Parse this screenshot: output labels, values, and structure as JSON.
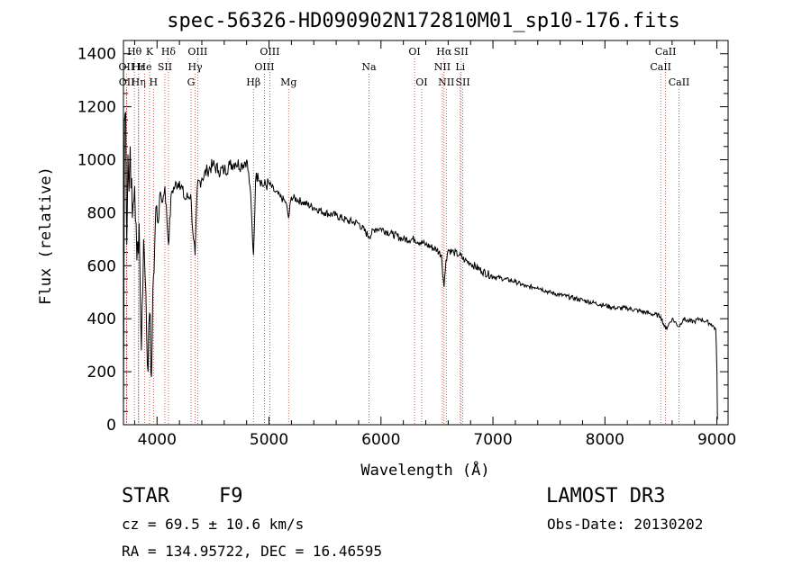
{
  "chart_data": {
    "type": "line",
    "title": "spec-56326-HD090902N172810M01_sp10-176.fits",
    "xlabel": "Wavelength (Å)",
    "ylabel": "Flux (relative)",
    "xlim": [
      3700,
      9100
    ],
    "ylim": [
      0,
      1450
    ],
    "xticks": [
      4000,
      5000,
      6000,
      7000,
      8000,
      9000
    ],
    "yticks": [
      0,
      200,
      400,
      600,
      800,
      1000,
      1200,
      1400
    ],
    "series": [
      {
        "name": "flux",
        "x": [
          3700,
          3710,
          3720,
          3730,
          3740,
          3750,
          3760,
          3780,
          3800,
          3820,
          3840,
          3860,
          3880,
          3900,
          3920,
          3933,
          3950,
          3968,
          3990,
          4010,
          4030,
          4050,
          4070,
          4102,
          4130,
          4160,
          4200,
          4250,
          4300,
          4325,
          4340,
          4360,
          4400,
          4450,
          4500,
          4550,
          4600,
          4650,
          4700,
          4750,
          4800,
          4830,
          4861,
          4880,
          4900,
          4950,
          5000,
          5050,
          5100,
          5150,
          5175,
          5200,
          5300,
          5400,
          5500,
          5600,
          5700,
          5800,
          5893,
          5950,
          6000,
          6100,
          6200,
          6300,
          6400,
          6500,
          6540,
          6563,
          6580,
          6600,
          6650,
          6700,
          6750,
          6800,
          6900,
          7000,
          7100,
          7200,
          7300,
          7400,
          7500,
          7600,
          7700,
          7800,
          7900,
          8000,
          8100,
          8200,
          8300,
          8400,
          8498,
          8542,
          8600,
          8662,
          8700,
          8750,
          8800,
          8850,
          8900,
          8950,
          8990,
          9000,
          9005
        ],
        "y": [
          20,
          1150,
          1180,
          680,
          1020,
          880,
          1050,
          780,
          900,
          620,
          760,
          280,
          700,
          500,
          200,
          420,
          180,
          560,
          820,
          760,
          880,
          840,
          900,
          680,
          880,
          900,
          920,
          850,
          870,
          700,
          640,
          900,
          930,
          960,
          980,
          960,
          960,
          980,
          990,
          980,
          1000,
          900,
          640,
          920,
          950,
          900,
          910,
          880,
          860,
          840,
          780,
          860,
          840,
          820,
          800,
          790,
          770,
          760,
          710,
          740,
          740,
          720,
          700,
          700,
          680,
          660,
          640,
          520,
          620,
          660,
          650,
          640,
          620,
          610,
          580,
          560,
          550,
          540,
          520,
          520,
          500,
          490,
          480,
          470,
          460,
          450,
          440,
          440,
          430,
          420,
          410,
          360,
          400,
          370,
          400,
          390,
          390,
          400,
          390,
          380,
          360,
          200,
          20
        ]
      }
    ],
    "lines": [
      {
        "label": "Hθ",
        "x": 3798,
        "row": 0
      },
      {
        "label": "OII",
        "x": 3727,
        "row": 1
      },
      {
        "label": "OII",
        "x": 3729,
        "row": 2
      },
      {
        "label": "Hε",
        "x": 3835,
        "row": 1
      },
      {
        "label": "Hη",
        "x": 3835,
        "row": 2
      },
      {
        "label": "K",
        "x": 3933,
        "row": 0
      },
      {
        "label": "He",
        "x": 3889,
        "row": 1
      },
      {
        "label": "H",
        "x": 3968,
        "row": 2
      },
      {
        "label": "Hδ",
        "x": 4102,
        "row": 0
      },
      {
        "label": "SII",
        "x": 4070,
        "row": 1
      },
      {
        "label": "OIII",
        "x": 4363,
        "row": 0
      },
      {
        "label": "Hγ",
        "x": 4340,
        "row": 1
      },
      {
        "label": "G",
        "x": 4304,
        "row": 2
      },
      {
        "label": "OIII",
        "x": 5007,
        "row": 0
      },
      {
        "label": "OIII",
        "x": 4959,
        "row": 1
      },
      {
        "label": "Hβ",
        "x": 4861,
        "row": 2
      },
      {
        "label": "Mg",
        "x": 5175,
        "row": 2
      },
      {
        "label": "Na",
        "x": 5893,
        "row": 1
      },
      {
        "label": "OI",
        "x": 6300,
        "row": 0
      },
      {
        "label": "OI",
        "x": 6363,
        "row": 2
      },
      {
        "label": "Hα",
        "x": 6563,
        "row": 0
      },
      {
        "label": "NII",
        "x": 6548,
        "row": 1
      },
      {
        "label": "NII",
        "x": 6583,
        "row": 2
      },
      {
        "label": "SII",
        "x": 6716,
        "row": 0
      },
      {
        "label": "Li",
        "x": 6708,
        "row": 1
      },
      {
        "label": "SII",
        "x": 6731,
        "row": 2
      },
      {
        "label": "CaII",
        "x": 8542,
        "row": 0
      },
      {
        "label": "CaII",
        "x": 8498,
        "row": 1
      },
      {
        "label": "CaII",
        "x": 8662,
        "row": 2
      }
    ]
  },
  "info": {
    "class_label": "STAR",
    "subclass": "F9",
    "survey": "LAMOST DR3",
    "cz": "cz = 69.5 ± 10.6 km/s",
    "obs_date": "Obs-Date: 20130202",
    "coords": "RA = 134.95722, DEC =  16.46595"
  }
}
